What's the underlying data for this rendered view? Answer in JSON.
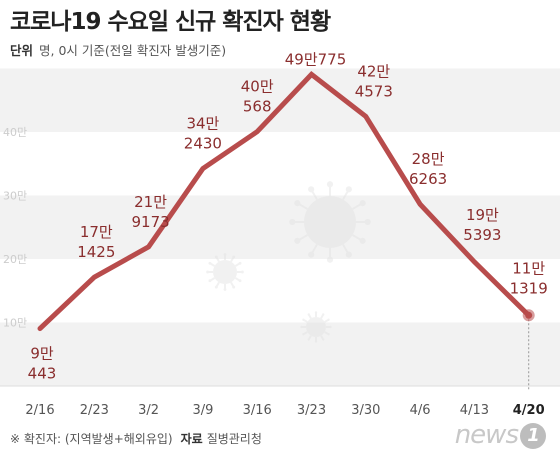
{
  "header": {
    "title": "코로나19 수요일 신규 확진자 현황",
    "unit_label": "단위",
    "unit_text": "명, 0시 기준(전일 확진자 발생기준)"
  },
  "footer": {
    "note": "※ 확진자: (지역발생+해외유입)",
    "source_label": "자료",
    "source": "질병관리청"
  },
  "logo": {
    "text": "news",
    "mark": "1"
  },
  "chart_data": {
    "type": "line",
    "title": "코로나19 수요일 신규 확진자 현황",
    "xlabel": "",
    "ylabel": "",
    "categories": [
      "2/16",
      "2/23",
      "3/2",
      "3/9",
      "3/16",
      "3/23",
      "3/30",
      "4/6",
      "4/13",
      "4/20"
    ],
    "values": [
      90443,
      171425,
      219173,
      342430,
      400568,
      490775,
      424573,
      286263,
      195393,
      111319
    ],
    "data_labels": [
      [
        "9만",
        "443"
      ],
      [
        "17만",
        "1425"
      ],
      [
        "21만",
        "9173"
      ],
      [
        "34만",
        "2430"
      ],
      [
        "40만",
        "568"
      ],
      [
        "49만775"
      ],
      [
        "42만",
        "4573"
      ],
      [
        "28만",
        "6263"
      ],
      [
        "19만",
        "5393"
      ],
      [
        "11만",
        "1319"
      ]
    ],
    "y_ticks": [
      {
        "value": 100000,
        "label": "10만"
      },
      {
        "value": 200000,
        "label": "20만"
      },
      {
        "value": 300000,
        "label": "30만"
      },
      {
        "value": 400000,
        "label": "40만"
      }
    ],
    "ylim": [
      0,
      500000
    ],
    "grid": "horizontal bands",
    "line_color": "#b84c4c",
    "highlight_category": "4/20"
  }
}
